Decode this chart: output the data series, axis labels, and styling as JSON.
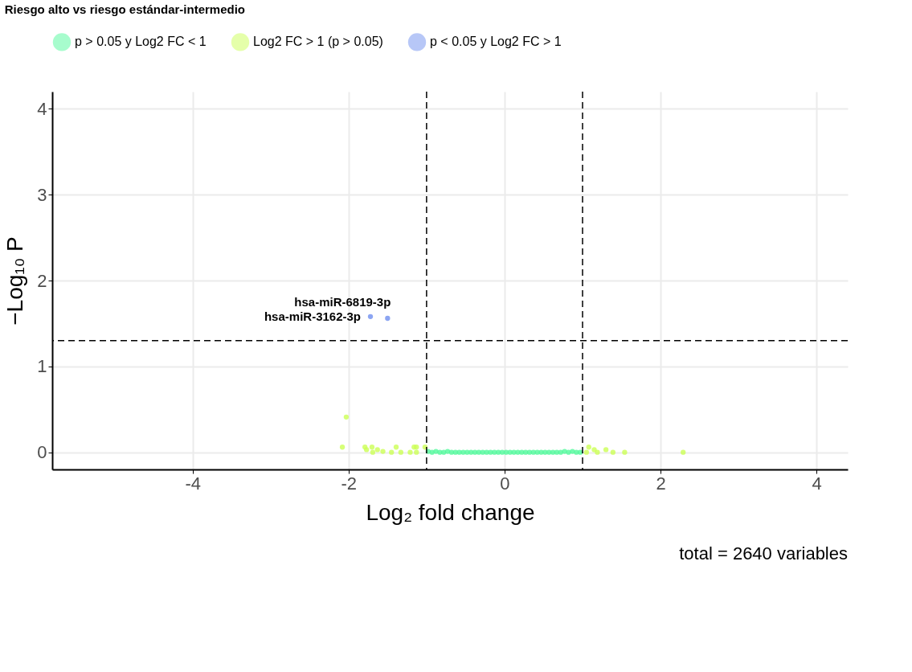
{
  "chart_data": {
    "type": "scatter",
    "title": "Riesgo alto vs riesgo estándar-intermedio",
    "xlabel": "Log₂ fold change",
    "ylabel": "−Log₁₀ P",
    "xlim": [
      -5.8,
      4.4
    ],
    "ylim": [
      -0.2,
      4.2
    ],
    "xticks": [
      -4,
      -2,
      0,
      2,
      4
    ],
    "yticks": [
      0,
      1,
      2,
      3,
      4
    ],
    "grid": true,
    "legend": "top",
    "marker": "circle",
    "series": [
      {
        "name": "p > 0.05 y Log2 FC < 1",
        "color": "#50fa9b",
        "x": [
          -0.98,
          -0.93,
          -0.88,
          -0.83,
          -0.78,
          -0.73,
          -0.68,
          -0.63,
          -0.58,
          -0.53,
          -0.48,
          -0.43,
          -0.38,
          -0.33,
          -0.28,
          -0.23,
          -0.18,
          -0.13,
          -0.08,
          -0.03,
          0.02,
          0.07,
          0.12,
          0.17,
          0.22,
          0.27,
          0.32,
          0.37,
          0.42,
          0.47,
          0.52,
          0.57,
          0.62,
          0.67,
          0.72,
          0.77,
          0.82,
          0.87,
          0.92,
          0.97
        ],
        "values": [
          0.01,
          0.0,
          0.01,
          0.0,
          0.0,
          0.01,
          0.0,
          0.0,
          0.0,
          0.0,
          0.0,
          0.0,
          0.0,
          0.0,
          0.0,
          0.0,
          0.0,
          0.0,
          0.0,
          0.0,
          0.0,
          0.0,
          0.0,
          0.0,
          0.0,
          0.0,
          0.0,
          0.0,
          0.0,
          0.0,
          0.0,
          0.0,
          0.0,
          0.0,
          0.0,
          0.01,
          0.0,
          0.01,
          0.0,
          0.0
        ]
      },
      {
        "name": "Log2 FC > 1 (p > 0.05)",
        "color": "#ccff55",
        "x": [
          -2.03,
          -2.08,
          -1.79,
          -1.7,
          -1.77,
          -1.69,
          -1.63,
          -1.56,
          -1.45,
          -1.39,
          -1.33,
          -1.21,
          -1.16,
          -1.13,
          -1.13,
          -1.02,
          1.05,
          1.08,
          1.15,
          1.19,
          1.3,
          1.39,
          1.54,
          2.29
        ],
        "values": [
          0.41,
          0.06,
          0.06,
          0.06,
          0.03,
          0.0,
          0.03,
          0.01,
          0.0,
          0.06,
          0.0,
          0.0,
          0.06,
          0.06,
          0.0,
          0.06,
          0.0,
          0.06,
          0.03,
          0.0,
          0.03,
          0.0,
          0.0,
          0.0
        ]
      },
      {
        "name": "p < 0.05 y Log2 FC > 1",
        "color": "#6f8fef",
        "x": [
          -1.72,
          -1.5
        ],
        "values": [
          1.58,
          1.56
        ]
      }
    ],
    "ref_lines": [
      {
        "axis": "x",
        "value": -1,
        "line_style": "dashed"
      },
      {
        "axis": "x",
        "value": 1,
        "line_style": "dashed"
      },
      {
        "axis": "y",
        "value": 1.3,
        "line_style": "dashed"
      }
    ],
    "annotations": [
      {
        "text": "hsa-miR-3162-3p",
        "x": -1.72,
        "y": 1.58
      },
      {
        "text": "hsa-miR-6819-3p",
        "x": -1.5,
        "y": 1.56
      },
      "total = 2640 variables"
    ]
  }
}
